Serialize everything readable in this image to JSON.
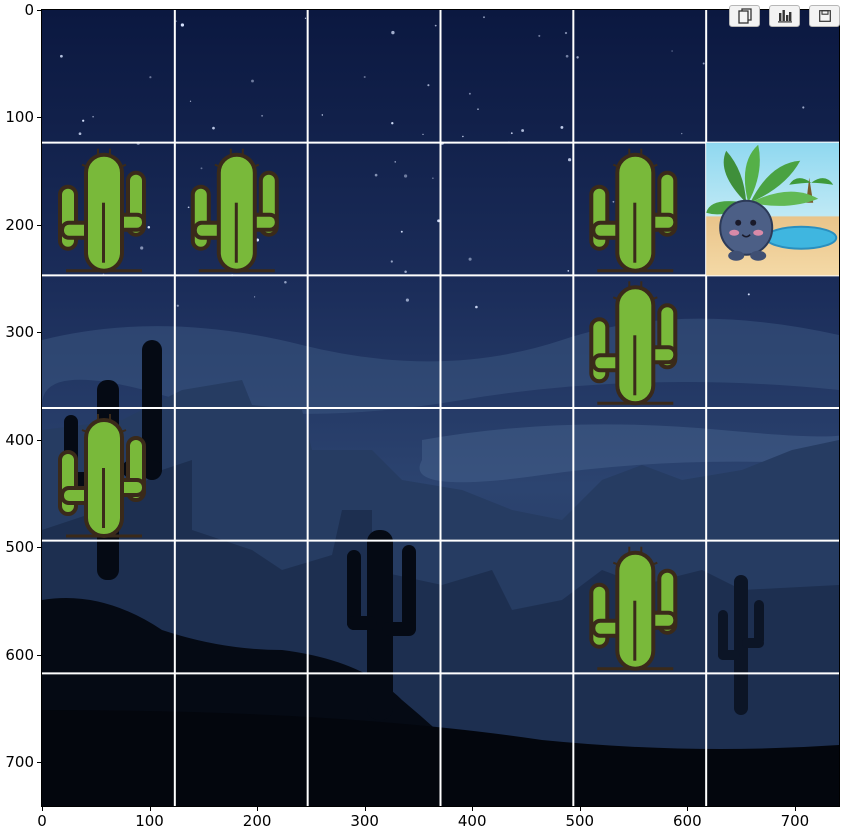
{
  "toolbar": {
    "buttons": [
      {
        "icon": "copy-icon"
      },
      {
        "icon": "bar-chart-icon"
      },
      {
        "icon": "save-icon"
      }
    ]
  },
  "axes": {
    "xticks": [
      "0",
      "100",
      "200",
      "300",
      "400",
      "500",
      "600",
      "700"
    ],
    "yticks": [
      "0",
      "100",
      "200",
      "300",
      "400",
      "500",
      "600",
      "700"
    ]
  },
  "game": {
    "grid_rows": 6,
    "grid_cols": 6,
    "cell_size_units": 123.5,
    "cacti": [
      {
        "row": 1,
        "col": 0
      },
      {
        "row": 1,
        "col": 1
      },
      {
        "row": 1,
        "col": 4
      },
      {
        "row": 2,
        "col": 4
      },
      {
        "row": 3,
        "col": 0
      },
      {
        "row": 4,
        "col": 4
      }
    ],
    "player": {
      "row": 1,
      "col": 5,
      "sprite": "oddish-in-oasis"
    },
    "colors": {
      "sky_top": "#0b1840",
      "sky_mid": "#233a66",
      "mountain": "#2a4068",
      "silhouette": "#050a14",
      "cactus": "#79b93a",
      "cactus_outline": "#3a2a1a",
      "gridline": "#ffffff"
    }
  }
}
